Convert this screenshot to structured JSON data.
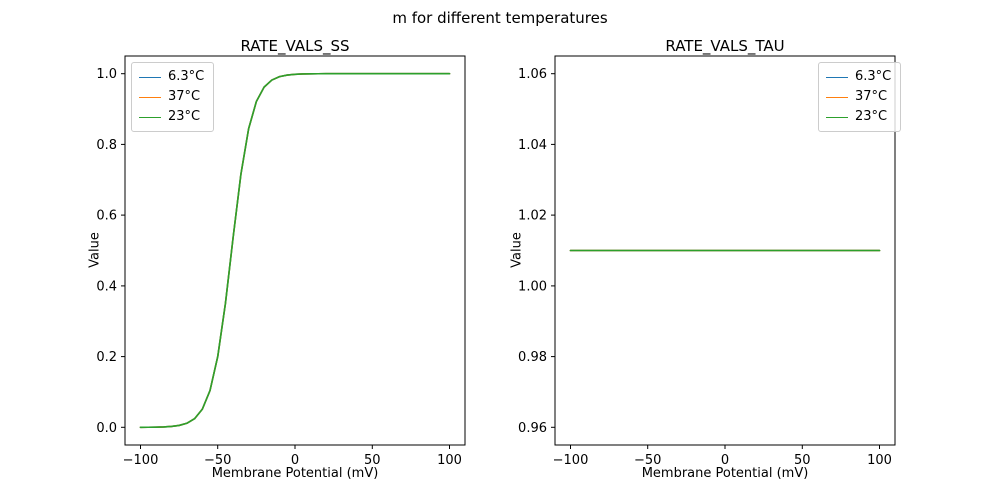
{
  "figure": {
    "suptitle": "m for different temperatures",
    "background": "#ffffff",
    "text_color": "#000000"
  },
  "chart_data": [
    {
      "type": "line",
      "title": "RATE_VALS_SS",
      "xlabel": "Membrane Potential (mV)",
      "ylabel": "Value",
      "xlim": [
        -110,
        110
      ],
      "ylim": [
        -0.05,
        1.05
      ],
      "xticks": [
        -100,
        -50,
        0,
        50,
        100
      ],
      "xtick_labels": [
        "−100",
        "−50",
        "0",
        "50",
        "100"
      ],
      "yticks": [
        0.0,
        0.2,
        0.4,
        0.6,
        0.8,
        1.0
      ],
      "ytick_labels": [
        "0.0",
        "0.2",
        "0.4",
        "0.6",
        "0.8",
        "1.0"
      ],
      "grid": false,
      "legend_position": "upper left",
      "x": [
        -100,
        -95,
        -90,
        -85,
        -80,
        -75,
        -70,
        -65,
        -60,
        -55,
        -50,
        -45,
        -40,
        -35,
        -30,
        -25,
        -20,
        -15,
        -10,
        -5,
        0,
        5,
        10,
        15,
        20,
        25,
        30,
        35,
        40,
        45,
        50,
        55,
        60,
        65,
        70,
        75,
        80,
        85,
        90,
        95,
        100
      ],
      "series": [
        {
          "name": "6.3°C",
          "color": "#1f77b4",
          "values": [
            0.0001,
            0.0002,
            0.0005,
            0.0011,
            0.0025,
            0.0053,
            0.0114,
            0.0243,
            0.051,
            0.104,
            0.2,
            0.3508,
            0.5384,
            0.7157,
            0.8445,
            0.9214,
            0.962,
            0.982,
            0.9916,
            0.9961,
            0.9982,
            0.9992,
            0.9996,
            0.9998,
            0.9999,
            1,
            1,
            1,
            1,
            1,
            1,
            1,
            1,
            1,
            1,
            1,
            1,
            1,
            1,
            1,
            1
          ]
        },
        {
          "name": "37°C",
          "color": "#ff7f0e",
          "values": [
            0.0001,
            0.0002,
            0.0005,
            0.0011,
            0.0025,
            0.0053,
            0.0114,
            0.0243,
            0.051,
            0.104,
            0.2,
            0.3508,
            0.5384,
            0.7157,
            0.8445,
            0.9214,
            0.962,
            0.982,
            0.9916,
            0.9961,
            0.9982,
            0.9992,
            0.9996,
            0.9998,
            0.9999,
            1,
            1,
            1,
            1,
            1,
            1,
            1,
            1,
            1,
            1,
            1,
            1,
            1,
            1,
            1,
            1
          ]
        },
        {
          "name": "23°C",
          "color": "#2ca02c",
          "values": [
            0.0001,
            0.0002,
            0.0005,
            0.0011,
            0.0025,
            0.0053,
            0.0114,
            0.0243,
            0.051,
            0.104,
            0.2,
            0.3508,
            0.5384,
            0.7157,
            0.8445,
            0.9214,
            0.962,
            0.982,
            0.9916,
            0.9961,
            0.9982,
            0.9992,
            0.9996,
            0.9998,
            0.9999,
            1,
            1,
            1,
            1,
            1,
            1,
            1,
            1,
            1,
            1,
            1,
            1,
            1,
            1,
            1,
            1
          ]
        }
      ],
      "note": "all three temperature curves overlap exactly; green (last plotted) is visible"
    },
    {
      "type": "line",
      "title": "RATE_VALS_TAU",
      "xlabel": "Membrane Potential (mV)",
      "ylabel": "Value",
      "xlim": [
        -110,
        110
      ],
      "ylim": [
        0.955,
        1.065
      ],
      "xticks": [
        -100,
        -50,
        0,
        50,
        100
      ],
      "xtick_labels": [
        "−100",
        "−50",
        "0",
        "50",
        "100"
      ],
      "yticks": [
        0.96,
        0.98,
        1.0,
        1.02,
        1.04,
        1.06
      ],
      "ytick_labels": [
        "0.96",
        "0.98",
        "1.00",
        "1.02",
        "1.04",
        "1.06"
      ],
      "grid": false,
      "legend_position": "upper right",
      "x": [
        -100,
        -95,
        -90,
        -85,
        -80,
        -75,
        -70,
        -65,
        -60,
        -55,
        -50,
        -45,
        -40,
        -35,
        -30,
        -25,
        -20,
        -15,
        -10,
        -5,
        0,
        5,
        10,
        15,
        20,
        25,
        30,
        35,
        40,
        45,
        50,
        55,
        60,
        65,
        70,
        75,
        80,
        85,
        90,
        95,
        100
      ],
      "series": [
        {
          "name": "6.3°C",
          "color": "#1f77b4",
          "values": [
            1.01,
            1.01,
            1.01,
            1.01,
            1.01,
            1.01,
            1.01,
            1.01,
            1.01,
            1.01,
            1.01,
            1.01,
            1.01,
            1.01,
            1.01,
            1.01,
            1.01,
            1.01,
            1.01,
            1.01,
            1.01,
            1.01,
            1.01,
            1.01,
            1.01,
            1.01,
            1.01,
            1.01,
            1.01,
            1.01,
            1.01,
            1.01,
            1.01,
            1.01,
            1.01,
            1.01,
            1.01,
            1.01,
            1.01,
            1.01,
            1.01
          ]
        },
        {
          "name": "37°C",
          "color": "#ff7f0e",
          "values": [
            1.01,
            1.01,
            1.01,
            1.01,
            1.01,
            1.01,
            1.01,
            1.01,
            1.01,
            1.01,
            1.01,
            1.01,
            1.01,
            1.01,
            1.01,
            1.01,
            1.01,
            1.01,
            1.01,
            1.01,
            1.01,
            1.01,
            1.01,
            1.01,
            1.01,
            1.01,
            1.01,
            1.01,
            1.01,
            1.01,
            1.01,
            1.01,
            1.01,
            1.01,
            1.01,
            1.01,
            1.01,
            1.01,
            1.01,
            1.01,
            1.01
          ]
        },
        {
          "name": "23°C",
          "color": "#2ca02c",
          "values": [
            1.01,
            1.01,
            1.01,
            1.01,
            1.01,
            1.01,
            1.01,
            1.01,
            1.01,
            1.01,
            1.01,
            1.01,
            1.01,
            1.01,
            1.01,
            1.01,
            1.01,
            1.01,
            1.01,
            1.01,
            1.01,
            1.01,
            1.01,
            1.01,
            1.01,
            1.01,
            1.01,
            1.01,
            1.01,
            1.01,
            1.01,
            1.01,
            1.01,
            1.01,
            1.01,
            1.01,
            1.01,
            1.01,
            1.01,
            1.01,
            1.01
          ]
        }
      ],
      "note": "constant line at 1.01 for all temperatures; curves overlap, green visible"
    }
  ]
}
